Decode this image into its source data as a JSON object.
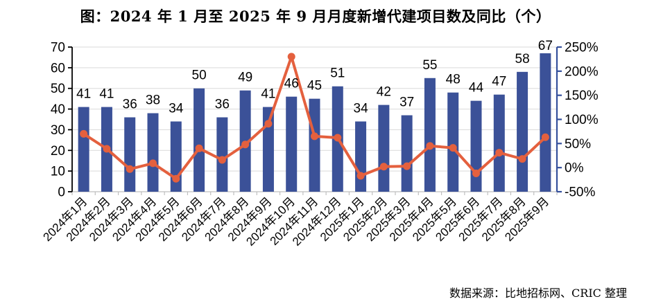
{
  "chart": {
    "title": "图：2024 年 1 月至 2025 年 9 月月度新增代建项目数及同比（个）",
    "source": "数据来源：比地招标网、CRIC 整理"
  },
  "chart_data": {
    "type": "bar+line-combo",
    "title": "图：2024 年 1 月至 2025 年 9 月月度新增代建项目数及同比（个）",
    "source": "数据来源：比地招标网、CRIC 整理",
    "categories": [
      "2024年1月",
      "2024年2月",
      "2024年3月",
      "2024年4月",
      "2024年5月",
      "2024年6月",
      "2024年7月",
      "2024年8月",
      "2024年9月",
      "2024年10月",
      "2024年11月",
      "2024年12月",
      "2025年1月",
      "2025年2月",
      "2025年3月",
      "2025年4月",
      "2025年5月",
      "2025年6月",
      "2025年7月",
      "2025年8月",
      "2025年9月"
    ],
    "series": [
      {
        "name": "月度新增代建项目数",
        "type": "bar",
        "axis": "left",
        "color": "#3B5198",
        "values": [
          41,
          41,
          36,
          38,
          34,
          50,
          36,
          49,
          41,
          46,
          45,
          51,
          34,
          42,
          37,
          55,
          48,
          44,
          47,
          58,
          67
        ]
      },
      {
        "name": "同比",
        "type": "line",
        "axis": "right",
        "color": "#E4603E",
        "unit": "%",
        "values_pct": [
          70,
          39,
          -3,
          9,
          -23,
          40,
          16,
          48,
          91,
          230,
          65,
          62,
          -17,
          2,
          3,
          45,
          41,
          -12,
          31,
          18,
          63
        ]
      }
    ],
    "left_axis": {
      "min": 0,
      "max": 70,
      "step": 10,
      "tick_labels": [
        "0",
        "10",
        "20",
        "30",
        "40",
        "50",
        "60",
        "70"
      ],
      "color": "#000000"
    },
    "right_axis": {
      "min": -50,
      "max": 250,
      "step": 50,
      "tick_labels": [
        "-50%",
        "0%",
        "50%",
        "100%",
        "150%",
        "200%",
        "250%"
      ],
      "color": "#35509C"
    },
    "grid": true,
    "gridline_color": "#D9D9D9",
    "x_axis_color": "#BFBFBF",
    "label_color": "#000000",
    "legend_position": "none"
  }
}
